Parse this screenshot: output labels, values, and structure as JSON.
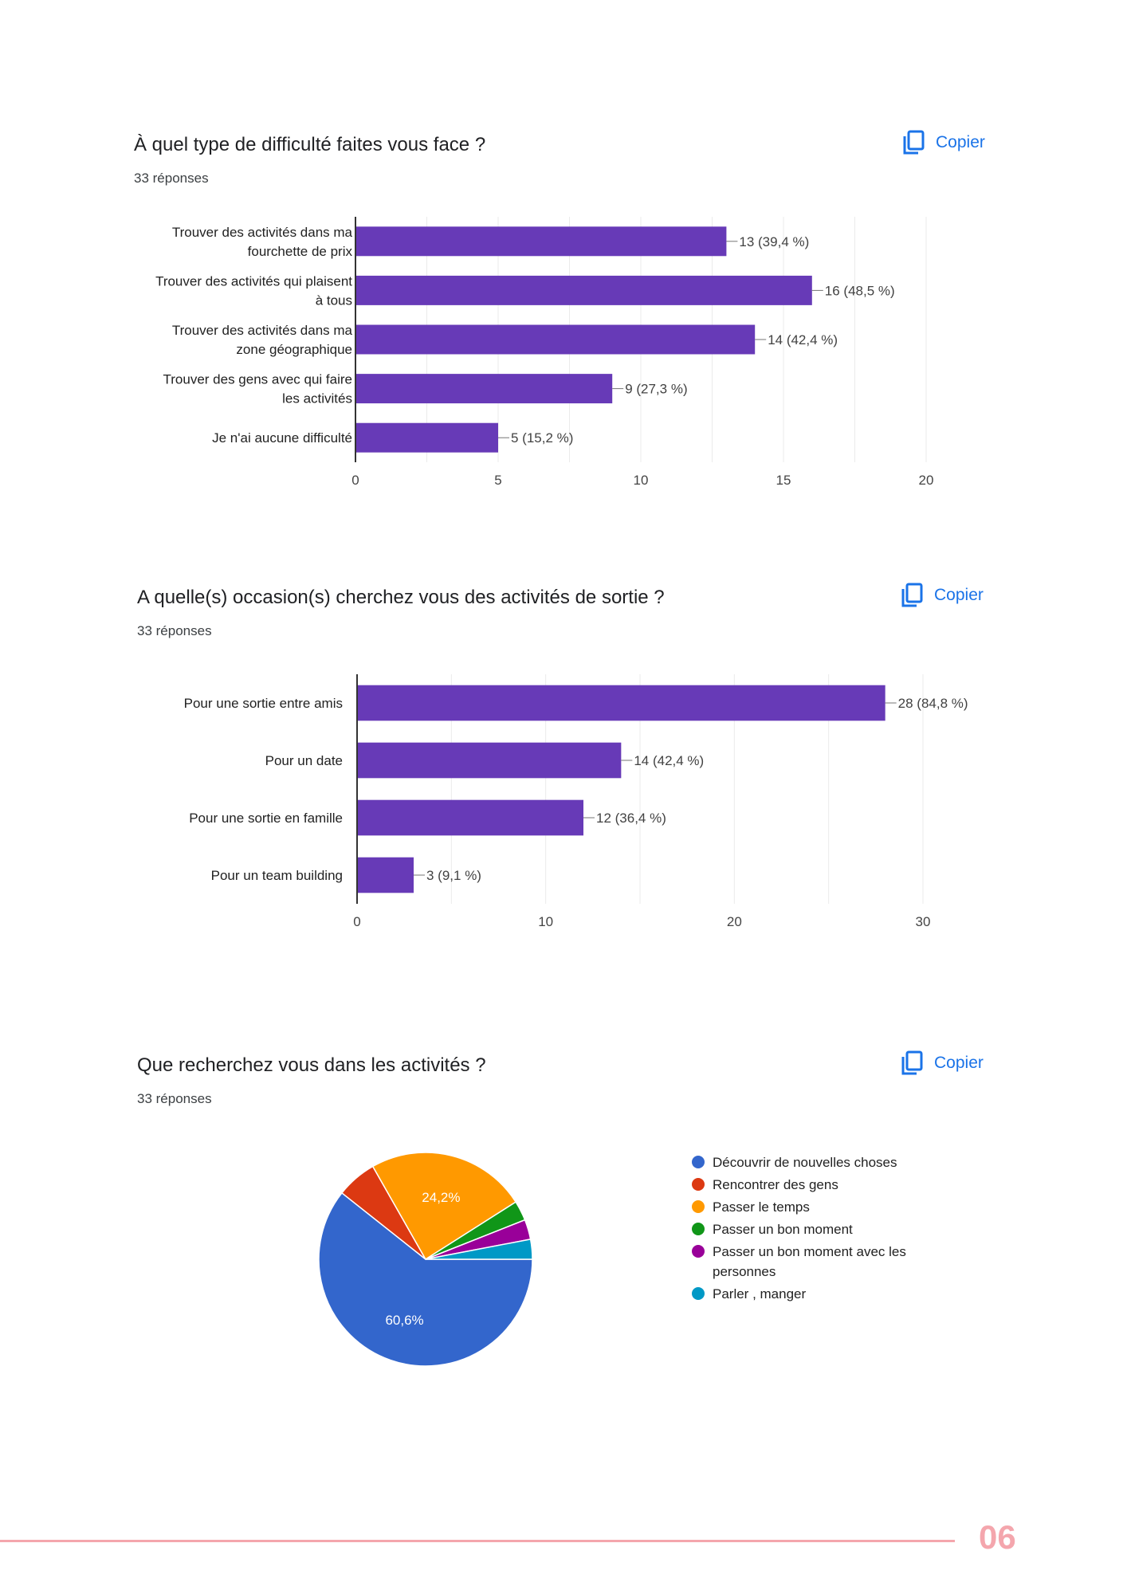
{
  "charts": [
    {
      "question": "À quel type de difficulté faites vous face ?",
      "responses": "33 réponses",
      "copy_label": "Copier"
    },
    {
      "question": "A quelle(s) occasion(s) cherchez vous des activités de sortie ?",
      "responses": "33 réponses",
      "copy_label": "Copier"
    },
    {
      "question": "Que recherchez vous dans les activités ?",
      "responses": "33 réponses",
      "copy_label": "Copier"
    }
  ],
  "chart_data": [
    {
      "type": "bar",
      "orientation": "horizontal",
      "categories": [
        [
          "Trouver des activités dans ma",
          "fourchette de prix"
        ],
        [
          "Trouver des activités qui plaisent",
          "à tous"
        ],
        [
          "Trouver des activités dans ma",
          "zone géographique"
        ],
        [
          "Trouver des gens avec qui faire",
          "les activités"
        ],
        [
          "Je n'ai aucune difficulté"
        ]
      ],
      "values": [
        13,
        16,
        14,
        9,
        5
      ],
      "value_labels": [
        "13 (39,4 %)",
        "16 (48,5 %)",
        "14 (42,4 %)",
        "9 (27,3 %)",
        "5 (15,2 %)"
      ],
      "xlim": [
        0,
        20
      ],
      "ticks": [
        0,
        5,
        10,
        15,
        20
      ],
      "color": "#673ab7",
      "grid": true
    },
    {
      "type": "bar",
      "orientation": "horizontal",
      "categories": [
        [
          "Pour une sortie entre amis"
        ],
        [
          "Pour un date"
        ],
        [
          "Pour une sortie en famille"
        ],
        [
          "Pour un team building"
        ]
      ],
      "values": [
        28,
        14,
        12,
        3
      ],
      "value_labels": [
        "28 (84,8 %)",
        "14 (42,4 %)",
        "12 (36,4 %)",
        "3 (9,1 %)"
      ],
      "xlim": [
        0,
        30
      ],
      "ticks": [
        0,
        10,
        20,
        30
      ],
      "color": "#673ab7",
      "grid": true
    },
    {
      "type": "pie",
      "slices": [
        {
          "label": "Découvrir de nouvelles choses",
          "value": 60.6,
          "display": "60,6%",
          "color": "#3366cc"
        },
        {
          "label": "Rencontrer des gens",
          "value": 6.1,
          "display": "",
          "color": "#dc3912"
        },
        {
          "label": "Passer le temps",
          "value": 24.2,
          "display": "24,2%",
          "color": "#ff9900"
        },
        {
          "label": "Passer un bon moment",
          "value": 3.0,
          "display": "",
          "color": "#109618"
        },
        {
          "label": "Passer un bon moment avec les personnes",
          "value": 3.0,
          "display": "",
          "color": "#990099"
        },
        {
          "label": "Parler , manger",
          "value": 3.0,
          "display": "",
          "color": "#0099c6"
        }
      ],
      "legend_position": "right"
    }
  ],
  "footer": {
    "page_number": "06"
  }
}
